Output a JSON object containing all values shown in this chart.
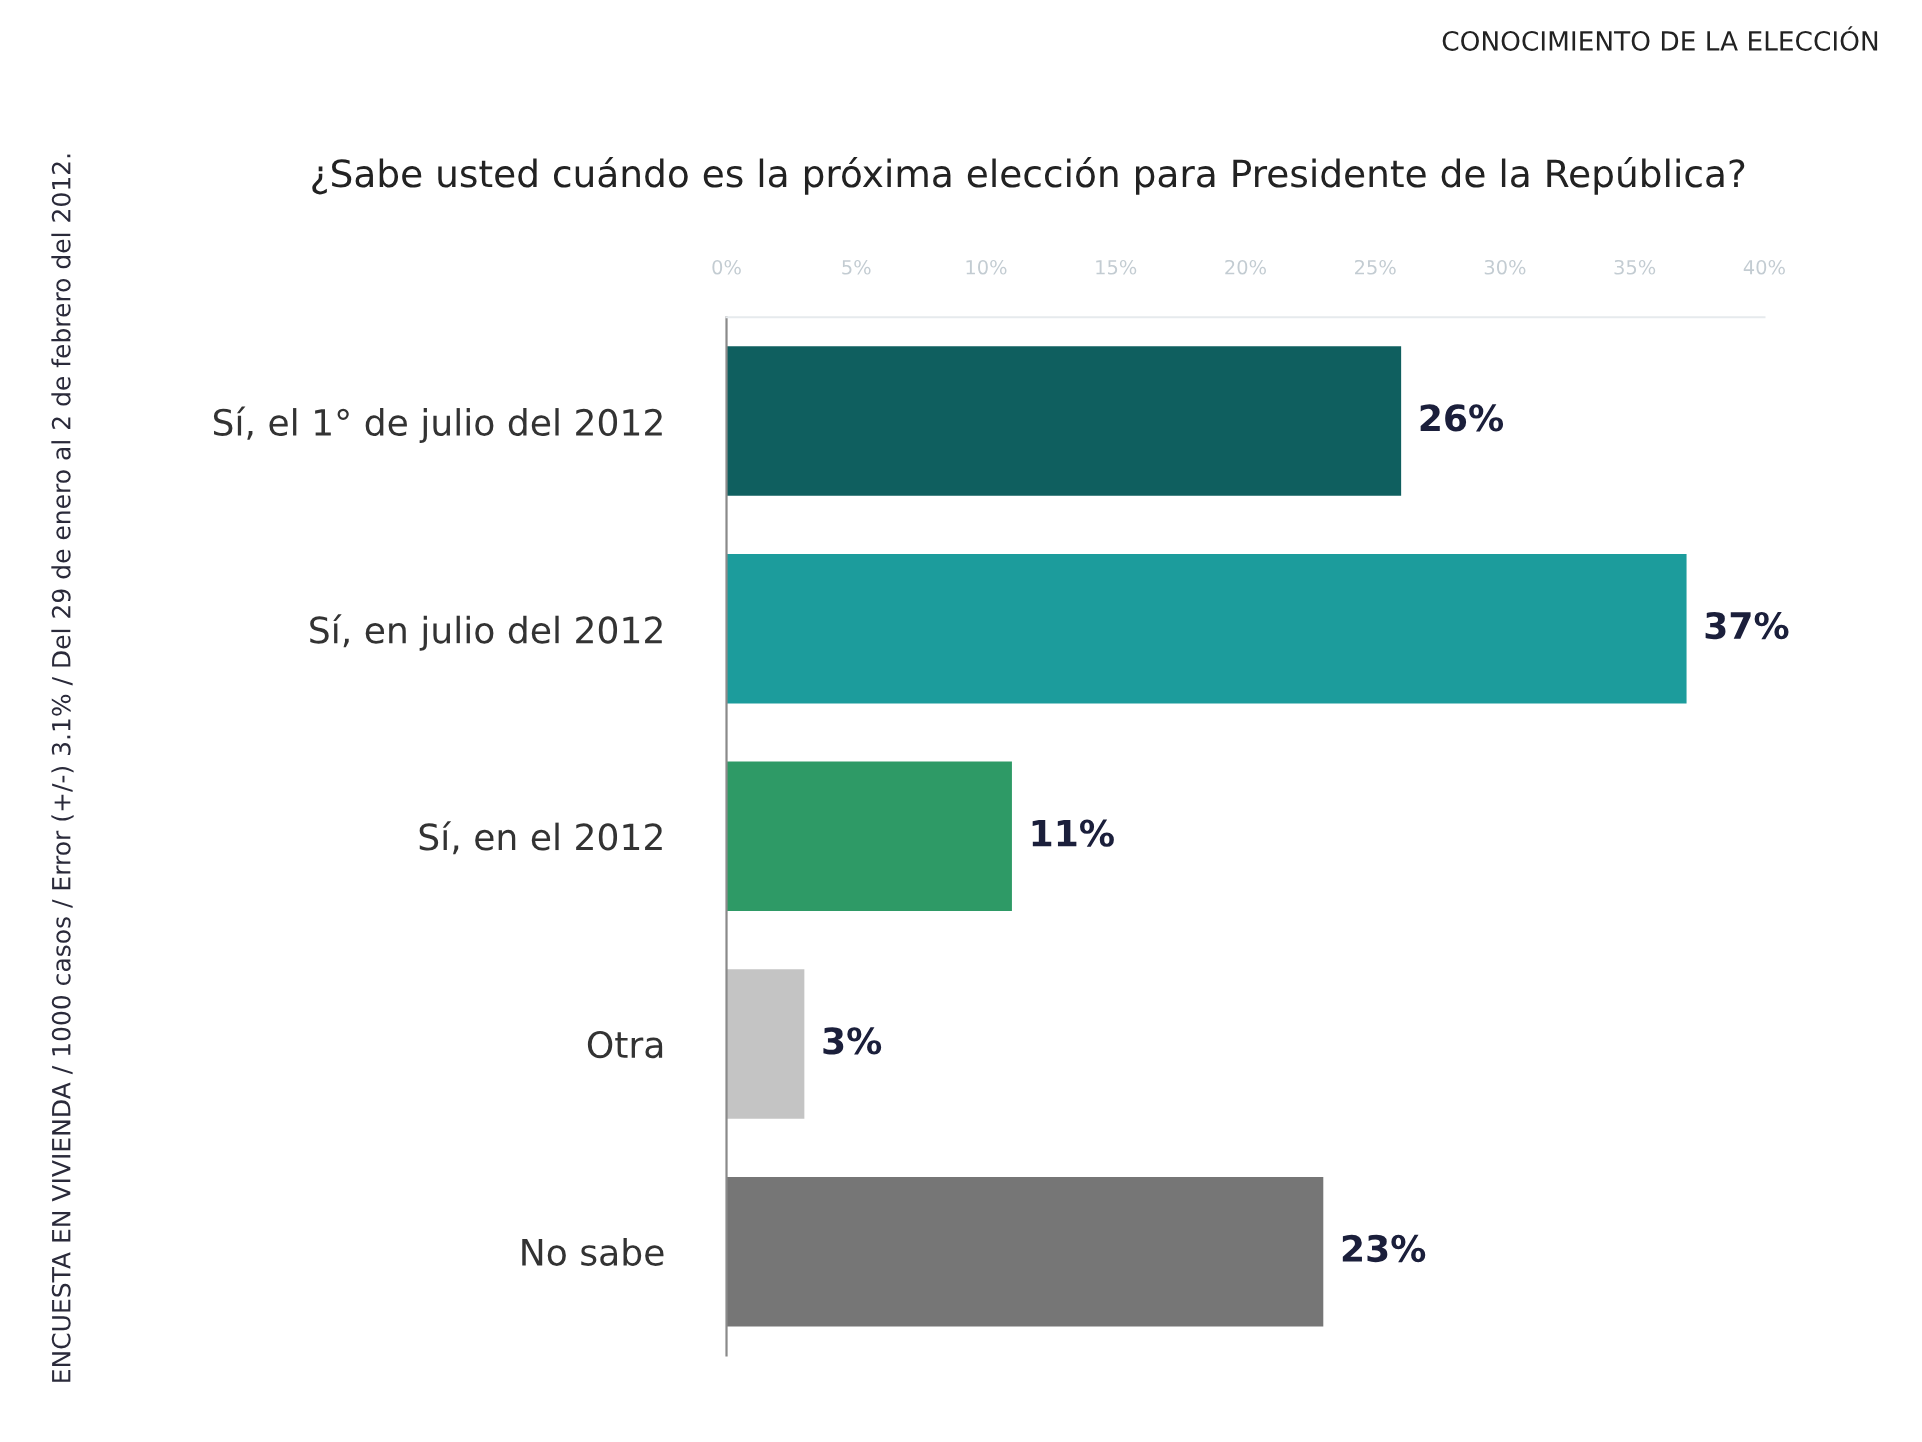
{
  "chart_data": {
    "type": "bar",
    "orientation": "horizontal",
    "title": "¿Sabe usted cuándo es la próxima elección para Presidente de la República?",
    "subtitle": "CONOCIMIENTO DE LA ELECCIÓN",
    "annotations": [
      "ENCUESTA EN VIVIENDA / 1000 casos / Error (+/-) 3.1% / Del 29 de enero al 2 de febrero del 2012."
    ],
    "categories": [
      "Sí, el 1° de julio del 2012",
      "Sí, en julio del 2012",
      "Sí, en el 2012",
      "Otra",
      "No sabe"
    ],
    "values": [
      26,
      37,
      11,
      3,
      23
    ],
    "colors": [
      "#0f5f5f",
      "#1c9c9c",
      "#2e9a66",
      "#c4c4c4",
      "#767676"
    ],
    "value_labels": [
      "26%",
      "37%",
      "11%",
      "3%",
      "23%"
    ],
    "xlim": [
      0,
      40
    ],
    "xticks": [
      {
        "value": 0,
        "label": "0%"
      },
      {
        "value": 5,
        "label": "5%"
      },
      {
        "value": 10,
        "label": "10%"
      },
      {
        "value": 15,
        "label": "15%"
      },
      {
        "value": 20,
        "label": "20%"
      },
      {
        "value": 25,
        "label": "25%"
      },
      {
        "value": 30,
        "label": "30%"
      },
      {
        "value": 35,
        "label": "35%"
      },
      {
        "value": 40,
        "label": "40%"
      }
    ],
    "grid": false
  }
}
